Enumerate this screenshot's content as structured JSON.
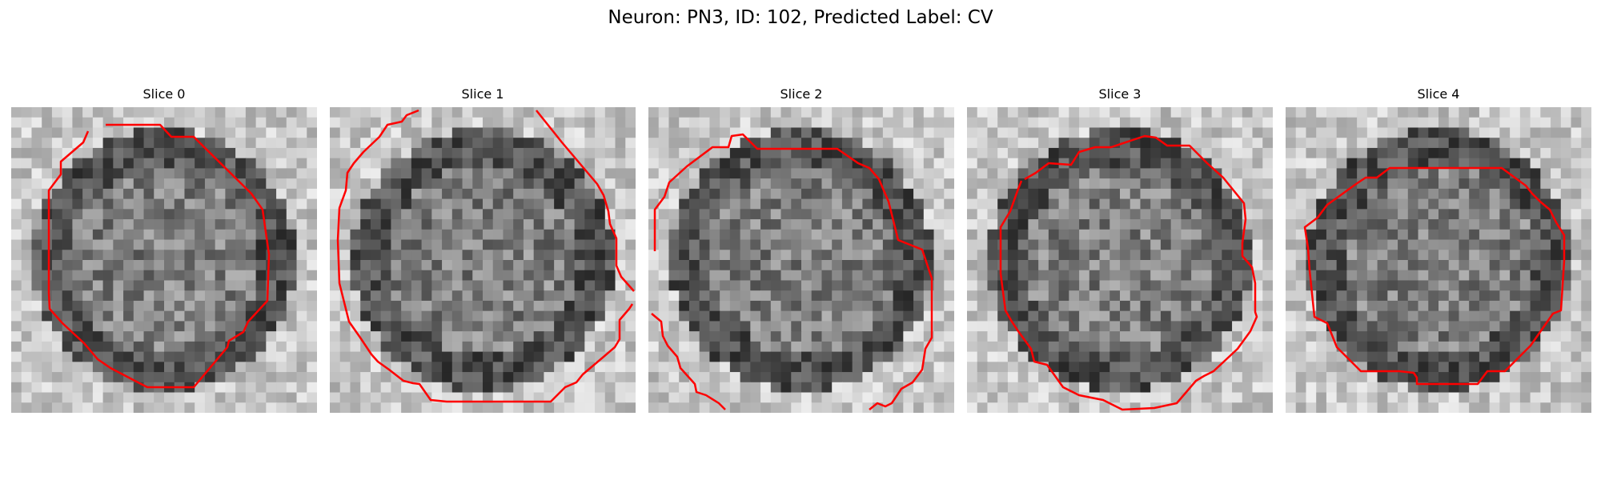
{
  "figure": {
    "title": "Neuron: PN3, ID: 102, Predicted Label: CV"
  },
  "panels": [
    {
      "title": "Slice 0",
      "seed": 11,
      "contour_color": "#ff0000"
    },
    {
      "title": "Slice 1",
      "seed": 23,
      "contour_color": "#ff0000"
    },
    {
      "title": "Slice 2",
      "seed": 37,
      "contour_color": "#ff0000"
    },
    {
      "title": "Slice 3",
      "seed": 41,
      "contour_color": "#ff0000"
    },
    {
      "title": "Slice 4",
      "seed": 59,
      "contour_color": "#ff0000"
    }
  ],
  "image_grid": 30,
  "colormap": "gray"
}
